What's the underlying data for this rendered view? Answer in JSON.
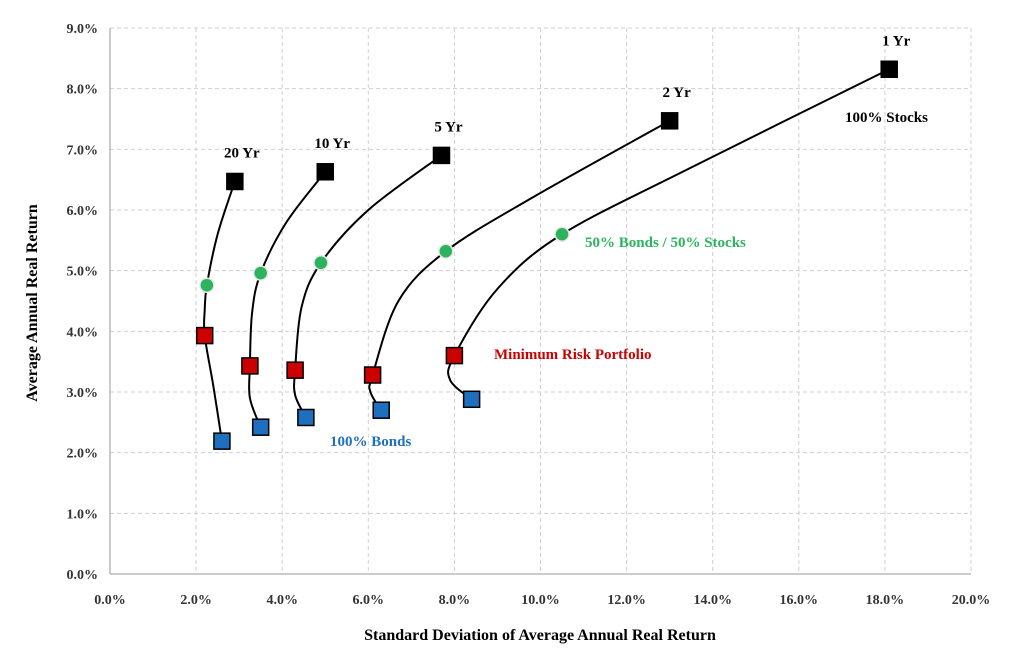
{
  "chart_data": {
    "type": "line",
    "xlabel": "Standard  Deviation  of Average  Annual  Real Return",
    "ylabel": "Average  Annual  Real Return",
    "xlim": [
      0,
      20
    ],
    "ylim": [
      0,
      9
    ],
    "xticks": [
      "0.0%",
      "2.0%",
      "4.0%",
      "6.0%",
      "8.0%",
      "10.0%",
      "12.0%",
      "14.0%",
      "16.0%",
      "18.0%",
      "20.0%"
    ],
    "yticks": [
      "0.0%",
      "1.0%",
      "2.0%",
      "3.0%",
      "4.0%",
      "5.0%",
      "6.0%",
      "7.0%",
      "8.0%",
      "9.0%"
    ],
    "grid": true,
    "legend": "none",
    "colors": {
      "stocks": "#000000",
      "balanced": "#2db35d",
      "min_risk": "#cc0000",
      "bonds": "#1f6fbf",
      "line": "#000000"
    },
    "series": [
      {
        "name": "1 Yr",
        "bonds": [
          8.4,
          2.88
        ],
        "min_risk": [
          8.0,
          3.6
        ],
        "balanced": [
          10.5,
          5.6
        ],
        "stocks": [
          18.1,
          8.32
        ],
        "curve": [
          [
            8.4,
            2.88
          ],
          [
            7.9,
            3.2
          ],
          [
            8.0,
            3.6
          ],
          [
            9.0,
            4.7
          ],
          [
            10.5,
            5.6
          ],
          [
            13.5,
            6.7
          ],
          [
            18.1,
            8.32
          ]
        ]
      },
      {
        "name": "2 Yr",
        "bonds": [
          6.3,
          2.7
        ],
        "min_risk": [
          6.1,
          3.28
        ],
        "balanced": [
          7.8,
          5.32
        ],
        "stocks": [
          13.0,
          7.47
        ],
        "curve": [
          [
            6.3,
            2.7
          ],
          [
            6.05,
            3.0
          ],
          [
            6.1,
            3.28
          ],
          [
            6.7,
            4.5
          ],
          [
            7.8,
            5.32
          ],
          [
            9.8,
            6.2
          ],
          [
            13.0,
            7.47
          ]
        ]
      },
      {
        "name": "5 Yr",
        "bonds": [
          4.55,
          2.58
        ],
        "min_risk": [
          4.3,
          3.36
        ],
        "balanced": [
          4.9,
          5.13
        ],
        "stocks": [
          7.7,
          6.9
        ],
        "curve": [
          [
            4.55,
            2.58
          ],
          [
            4.3,
            2.95
          ],
          [
            4.3,
            3.36
          ],
          [
            4.45,
            4.4
          ],
          [
            4.9,
            5.13
          ],
          [
            6.0,
            6.0
          ],
          [
            7.7,
            6.9
          ]
        ]
      },
      {
        "name": "10 Yr",
        "bonds": [
          3.5,
          2.42
        ],
        "min_risk": [
          3.25,
          3.43
        ],
        "balanced": [
          3.5,
          4.96
        ],
        "stocks": [
          5.0,
          6.63
        ],
        "curve": [
          [
            3.5,
            2.42
          ],
          [
            3.25,
            2.9
          ],
          [
            3.25,
            3.43
          ],
          [
            3.3,
            4.3
          ],
          [
            3.5,
            4.96
          ],
          [
            4.1,
            5.8
          ],
          [
            5.0,
            6.63
          ]
        ]
      },
      {
        "name": "20 Yr",
        "bonds": [
          2.6,
          2.19
        ],
        "min_risk": [
          2.2,
          3.93
        ],
        "balanced": [
          2.25,
          4.76
        ],
        "stocks": [
          2.9,
          6.47
        ],
        "curve": [
          [
            2.6,
            2.19
          ],
          [
            2.4,
            3.1
          ],
          [
            2.2,
            3.93
          ],
          [
            2.2,
            4.35
          ],
          [
            2.25,
            4.76
          ],
          [
            2.5,
            5.6
          ],
          [
            2.9,
            6.47
          ]
        ]
      }
    ],
    "annotations": {
      "stocks_label": "100% Stocks",
      "balanced_label": "50% Bonds / 50% Stocks",
      "min_risk_label": "Minimum  Risk Portfolio",
      "bonds_label": "100% Bonds"
    }
  }
}
